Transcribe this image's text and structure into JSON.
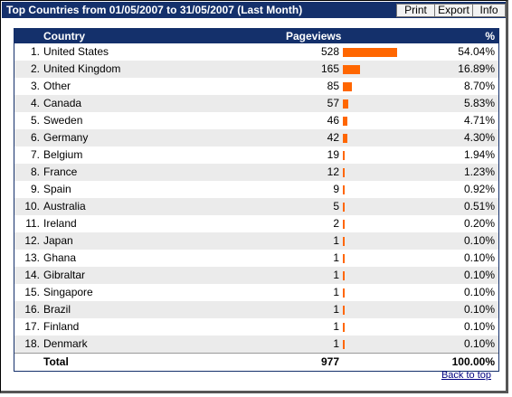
{
  "window": {
    "title": "Top Countries from 01/05/2007 to 31/05/2007 (Last Month)",
    "buttons": {
      "print": "Print",
      "export": "Export",
      "info": "Info"
    }
  },
  "table": {
    "columns": {
      "country": "Country",
      "pageviews": "Pageviews",
      "percent": "%"
    },
    "rows": [
      {
        "rank": "1.",
        "country": "United States",
        "pageviews": "528",
        "percent": "54.04%",
        "share": 0.5404
      },
      {
        "rank": "2.",
        "country": "United Kingdom",
        "pageviews": "165",
        "percent": "16.89%",
        "share": 0.1689
      },
      {
        "rank": "3.",
        "country": "Other",
        "pageviews": "85",
        "percent": "8.70%",
        "share": 0.087
      },
      {
        "rank": "4.",
        "country": "Canada",
        "pageviews": "57",
        "percent": "5.83%",
        "share": 0.0583
      },
      {
        "rank": "5.",
        "country": "Sweden",
        "pageviews": "46",
        "percent": "4.71%",
        "share": 0.0471
      },
      {
        "rank": "6.",
        "country": "Germany",
        "pageviews": "42",
        "percent": "4.30%",
        "share": 0.043
      },
      {
        "rank": "7.",
        "country": "Belgium",
        "pageviews": "19",
        "percent": "1.94%",
        "share": 0.0194
      },
      {
        "rank": "8.",
        "country": "France",
        "pageviews": "12",
        "percent": "1.23%",
        "share": 0.0123
      },
      {
        "rank": "9.",
        "country": "Spain",
        "pageviews": "9",
        "percent": "0.92%",
        "share": 0.0092
      },
      {
        "rank": "10.",
        "country": "Australia",
        "pageviews": "5",
        "percent": "0.51%",
        "share": 0.0051
      },
      {
        "rank": "11.",
        "country": "Ireland",
        "pageviews": "2",
        "percent": "0.20%",
        "share": 0.002
      },
      {
        "rank": "12.",
        "country": "Japan",
        "pageviews": "1",
        "percent": "0.10%",
        "share": 0.001
      },
      {
        "rank": "13.",
        "country": "Ghana",
        "pageviews": "1",
        "percent": "0.10%",
        "share": 0.001
      },
      {
        "rank": "14.",
        "country": "Gibraltar",
        "pageviews": "1",
        "percent": "0.10%",
        "share": 0.001
      },
      {
        "rank": "15.",
        "country": "Singapore",
        "pageviews": "1",
        "percent": "0.10%",
        "share": 0.001
      },
      {
        "rank": "16.",
        "country": "Brazil",
        "pageviews": "1",
        "percent": "0.10%",
        "share": 0.001
      },
      {
        "rank": "17.",
        "country": "Finland",
        "pageviews": "1",
        "percent": "0.10%",
        "share": 0.001
      },
      {
        "rank": "18.",
        "country": "Denmark",
        "pageviews": "1",
        "percent": "0.10%",
        "share": 0.001
      }
    ],
    "total": {
      "label": "Total",
      "pageviews": "977",
      "percent": "100.00%"
    }
  },
  "footer": {
    "back_to_top": "Back to top"
  },
  "colors": {
    "header": "#14306b",
    "bar": "#ff6600",
    "alt_row": "#ebebeb"
  }
}
